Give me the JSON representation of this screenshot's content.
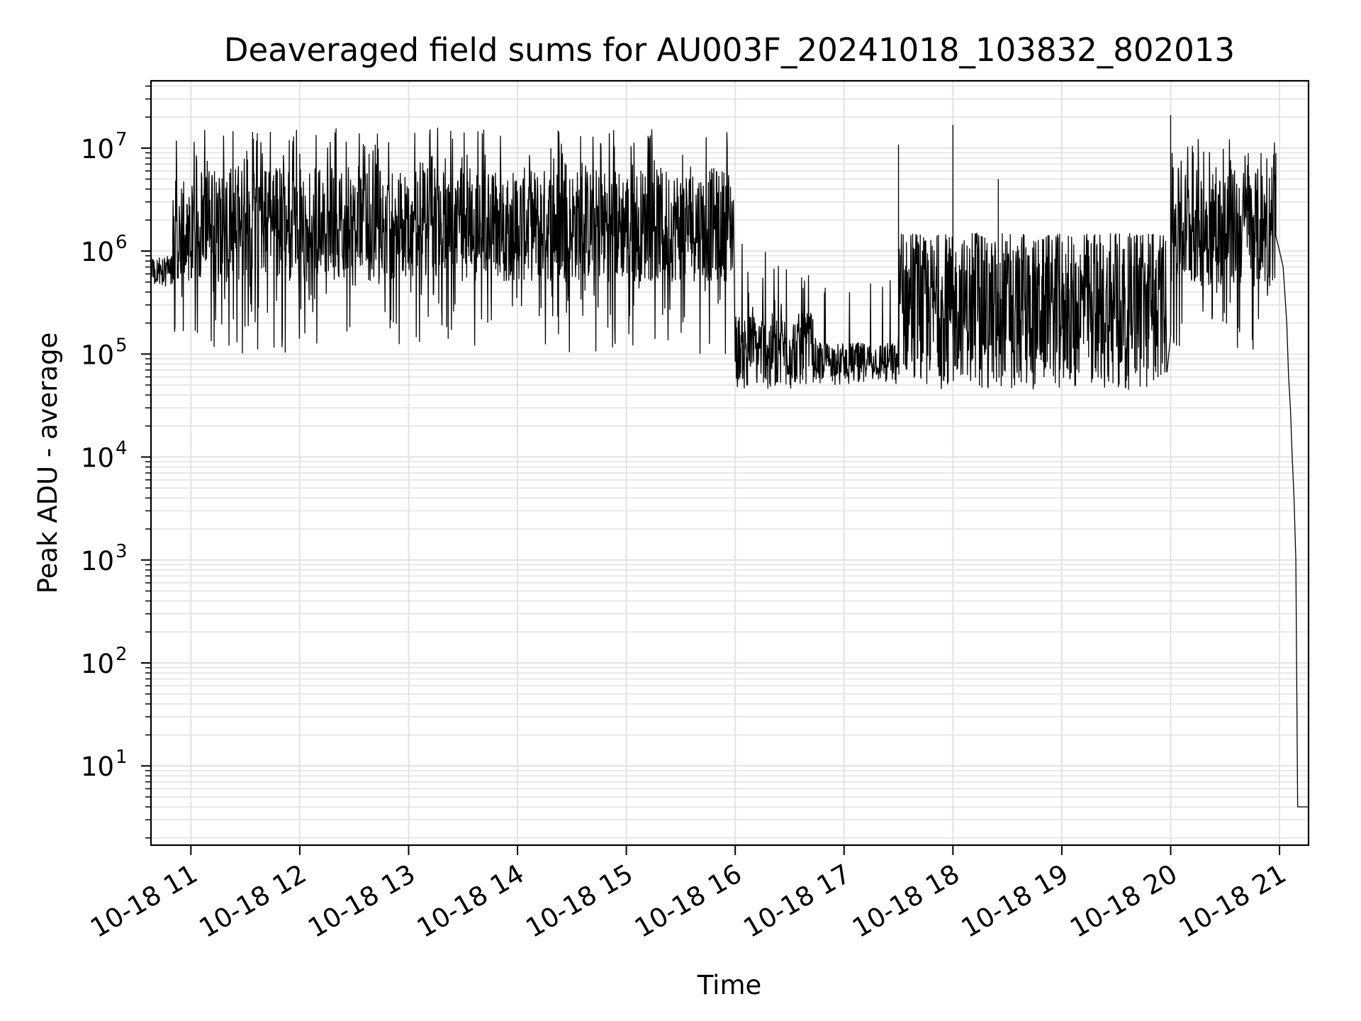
{
  "chart_data": {
    "type": "line",
    "title": "Deaveraged field sums for AU003F_20241018_103832_802013",
    "xlabel": "Time",
    "ylabel": "Peak ADU - average",
    "x_scale": "time",
    "y_scale": "log",
    "x_range": [
      "2024-10-18 10:38",
      "2024-10-18 21:16"
    ],
    "y_range": [
      1.7,
      45000000
    ],
    "grid": true,
    "line_color": "#000000",
    "x_ticks": [
      {
        "value": "2024-10-18 11:00",
        "label": "10-18 11"
      },
      {
        "value": "2024-10-18 12:00",
        "label": "10-18 12"
      },
      {
        "value": "2024-10-18 13:00",
        "label": "10-18 13"
      },
      {
        "value": "2024-10-18 14:00",
        "label": "10-18 14"
      },
      {
        "value": "2024-10-18 15:00",
        "label": "10-18 15"
      },
      {
        "value": "2024-10-18 16:00",
        "label": "10-18 16"
      },
      {
        "value": "2024-10-18 17:00",
        "label": "10-18 17"
      },
      {
        "value": "2024-10-18 18:00",
        "label": "10-18 18"
      },
      {
        "value": "2024-10-18 19:00",
        "label": "10-18 19"
      },
      {
        "value": "2024-10-18 20:00",
        "label": "10-18 20"
      },
      {
        "value": "2024-10-18 21:00",
        "label": "10-18 21"
      }
    ],
    "y_ticks": [
      {
        "value": 10,
        "base": "10",
        "exp": "1"
      },
      {
        "value": 100,
        "base": "10",
        "exp": "2"
      },
      {
        "value": 1000,
        "base": "10",
        "exp": "3"
      },
      {
        "value": 10000,
        "base": "10",
        "exp": "4"
      },
      {
        "value": 100000,
        "base": "10",
        "exp": "5"
      },
      {
        "value": 1000000,
        "base": "10",
        "exp": "6"
      },
      {
        "value": 10000000,
        "base": "10",
        "exp": "7"
      }
    ],
    "series": [
      {
        "segments": [
          {
            "start": "2024-10-18 10:38",
            "end": "2024-10-18 10:50",
            "low": 450000,
            "high": 800000,
            "peak": 900000
          },
          {
            "start": "2024-10-18 10:50",
            "end": "2024-10-18 15:59",
            "low": 500000,
            "high": 6500000,
            "dip_min": 100000,
            "spike_max": 16000000
          },
          {
            "start": "2024-10-18 16:00",
            "end": "2024-10-18 16:43",
            "low": 55000,
            "high": 250000,
            "dip_min": 45000,
            "spike_max": 1200000
          },
          {
            "start": "2024-10-18 16:43",
            "end": "2024-10-18 17:30",
            "low": 60000,
            "high": 130000,
            "dip_min": 50000,
            "spike_max": 600000
          },
          {
            "start": "2024-10-18 17:30",
            "end": "2024-10-18 19:58",
            "low": 60000,
            "high": 1400000,
            "dip_min": 45000,
            "spike_max": 1500000
          },
          {
            "start": "2024-10-18 20:00",
            "end": "2024-10-18 20:58",
            "low": 450000,
            "high": 6500000,
            "dip_min": 100000,
            "spike_max": 13000000
          }
        ],
        "spikes": [
          {
            "x": "2024-10-18 17:30",
            "y": 10800000
          },
          {
            "x": "2024-10-18 18:00",
            "y": 16800000
          },
          {
            "x": "2024-10-18 18:25",
            "y": 5000000
          },
          {
            "x": "2024-10-18 20:00",
            "y": 21000000
          }
        ],
        "decay": [
          {
            "x": "2024-10-18 20:58",
            "y": 1400000
          },
          {
            "x": "2024-10-18 21:00",
            "y": 1000000
          },
          {
            "x": "2024-10-18 21:02",
            "y": 700000
          },
          {
            "x": "2024-10-18 21:04",
            "y": 200000
          },
          {
            "x": "2024-10-18 21:05",
            "y": 60000
          },
          {
            "x": "2024-10-18 21:06",
            "y": 30000
          },
          {
            "x": "2024-10-18 21:07",
            "y": 10000
          },
          {
            "x": "2024-10-18 21:08",
            "y": 4000
          },
          {
            "x": "2024-10-18 21:09",
            "y": 1000
          },
          {
            "x": "2024-10-18 21:10",
            "y": 4
          },
          {
            "x": "2024-10-18 21:16",
            "y": 4
          }
        ]
      }
    ]
  }
}
